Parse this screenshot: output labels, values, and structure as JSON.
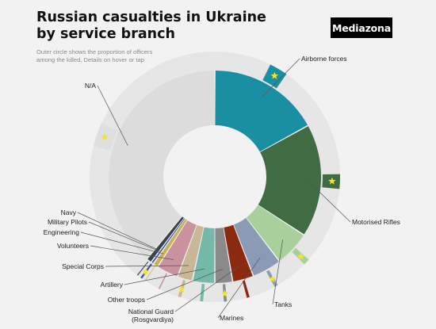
{
  "header": {
    "title_line1": "Russian casualties in Ukraine",
    "title_line2": "by service branch",
    "subtitle_line1": "Outer circle shows the proportion of officers",
    "subtitle_line2": "among the killed. Details on hover or tap",
    "brand": "Mediazona"
  },
  "colors": {
    "background": "#f2f2f2",
    "outer_ring": "#e6e6e6",
    "star": "#f5e52a"
  },
  "chart_data": {
    "type": "pie",
    "variant": "donut-with-outer-officer-ring",
    "segments": [
      {
        "name": "Airborne forces",
        "value": 17.0,
        "officer_share": 0.14,
        "star": true,
        "color": "#1a8fa3"
      },
      {
        "name": "Motorised Rifles",
        "value": 17.2,
        "officer_share": 0.11,
        "star": true,
        "color": "#416b43"
      },
      {
        "name": "Tanks",
        "value": 5.4,
        "officer_share": 0.15,
        "star": true,
        "color": "#a8cf9c"
      },
      {
        "name": "Marines",
        "value": 4.5,
        "officer_share": 0.1,
        "star": true,
        "color": "#8c9bb5"
      },
      {
        "name": "National Guard\n(Rosgvardiya)",
        "value": 3.2,
        "officer_share": 0.11,
        "star": false,
        "color": "#8c2a10"
      },
      {
        "name": "Other troops",
        "value": 2.7,
        "officer_share": 0.14,
        "star": true,
        "color": "#8a8a8a"
      },
      {
        "name": "Artillery",
        "value": 3.4,
        "officer_share": 0.12,
        "star": false,
        "color": "#75baa8"
      },
      {
        "name": "Special Corps",
        "value": 2.3,
        "officer_share": 0.17,
        "star": true,
        "color": "#c9b897"
      },
      {
        "name": "Volunteers",
        "value": 3.3,
        "officer_share": 0.05,
        "star": false,
        "color": "#c9929e"
      },
      {
        "name": "Engineering",
        "value": 0.8,
        "officer_share": 0.1,
        "star": false,
        "color": "#c9b050"
      },
      {
        "name": "Military Pilots",
        "value": 0.4,
        "officer_share": 0.6,
        "star": true,
        "color": "#35568c"
      },
      {
        "name": "Navy",
        "value": 0.8,
        "officer_share": 0.15,
        "star": false,
        "color": "#3a4050"
      },
      {
        "name": "N/A",
        "value": 39.0,
        "officer_share": 0.08,
        "star": true,
        "color": "#dcdcdc"
      }
    ]
  }
}
